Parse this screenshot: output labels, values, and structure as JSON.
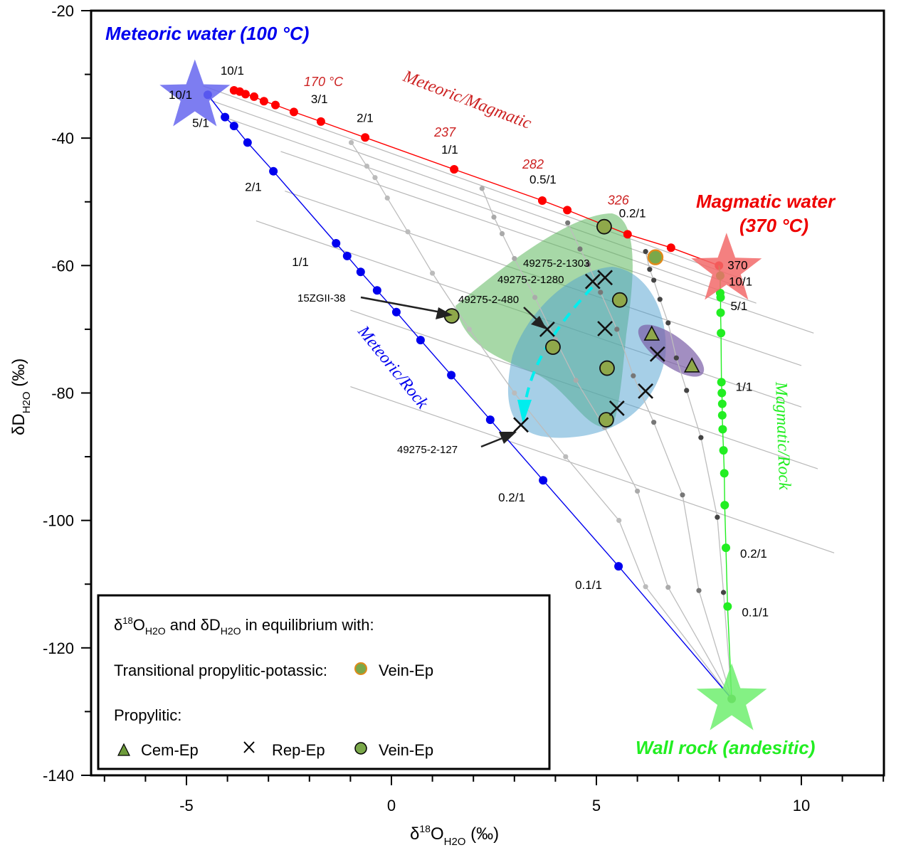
{
  "chart_data": {
    "type": "scatter",
    "title": "",
    "xlabel": "δ18O_H2O (‰)",
    "ylabel": "δD_H2O (‰)",
    "xlim": [
      -7.2,
      12.5
    ],
    "ylim": [
      -140,
      -20
    ],
    "xticks": [
      -5,
      0,
      5,
      10
    ],
    "yticks": [
      -20,
      -40,
      -60,
      -80,
      -100,
      -120,
      -140
    ],
    "grid": false,
    "endmembers": [
      {
        "name": "Meteoric water (100 °C)",
        "x": -4.5,
        "y": -33,
        "color": "#6666ee"
      },
      {
        "name": "Magmatic water (370 °C)",
        "x": 8.0,
        "y": -60,
        "color": "#f26a6a"
      },
      {
        "name": "Wall rock (andesitic)",
        "x": 8.3,
        "y": -128,
        "color": "#6fef6f"
      }
    ],
    "series": [
      {
        "name": "Meteoric/Magmatic",
        "color": "#ff0000",
        "points": [
          [
            -3.84,
            -32.5
          ],
          [
            -3.7,
            -32.7
          ],
          [
            -3.56,
            -33.1
          ],
          [
            -3.35,
            -33.5
          ],
          [
            -3.11,
            -34.2
          ],
          [
            -2.83,
            -34.8
          ],
          [
            -2.38,
            -35.9
          ],
          [
            -1.72,
            -37.4
          ],
          [
            -0.64,
            -39.9
          ],
          [
            1.53,
            -44.9
          ],
          [
            3.68,
            -49.8
          ],
          [
            4.29,
            -51.3
          ],
          [
            5.76,
            -55.1
          ],
          [
            6.82,
            -57.2
          ],
          [
            7.99,
            -60.0
          ]
        ],
        "ratio_labels": [
          {
            "text": "10/1",
            "x": -3.84,
            "y": -32.5
          },
          {
            "text": "3/1",
            "x": -1.72,
            "y": -37.4
          },
          {
            "text": "2/1",
            "x": -0.64,
            "y": -39.9
          },
          {
            "text": "1/1",
            "x": 1.53,
            "y": -44.9
          },
          {
            "text": "0.5/1",
            "x": 3.68,
            "y": -49.8
          },
          {
            "text": "0.2/1",
            "x": 5.76,
            "y": -55.1
          },
          {
            "text": "370",
            "x": 7.99,
            "y": -60.0
          }
        ],
        "temperature_labels": [
          {
            "text": "170 °C",
            "x": -1.72,
            "y": -37.4
          },
          {
            "text": "237",
            "x": 1.53,
            "y": -44.9
          },
          {
            "text": "282",
            "x": 3.68,
            "y": -49.8
          },
          {
            "text": "326",
            "x": 5.76,
            "y": -55.1
          }
        ]
      },
      {
        "name": "Meteoric/Rock",
        "color": "#0000ee",
        "points": [
          [
            -4.48,
            -33.2
          ],
          [
            -4.06,
            -36.7
          ],
          [
            -3.84,
            -38.1
          ],
          [
            -3.51,
            -40.7
          ],
          [
            -2.88,
            -45.2
          ],
          [
            -1.35,
            -56.5
          ],
          [
            -1.08,
            -58.5
          ],
          [
            -0.75,
            -61.0
          ],
          [
            -0.35,
            -63.9
          ],
          [
            0.12,
            -67.3
          ],
          [
            0.71,
            -71.7
          ],
          [
            1.46,
            -77.2
          ],
          [
            2.41,
            -84.2
          ],
          [
            3.7,
            -93.7
          ],
          [
            5.54,
            -107.2
          ],
          [
            8.3,
            -128
          ]
        ],
        "ratio_labels": [
          {
            "text": "10/1",
            "x": -4.48,
            "y": -33.2
          },
          {
            "text": "5/1",
            "x": -4.06,
            "y": -36.7
          },
          {
            "text": "2/1",
            "x": -2.88,
            "y": -45.2
          },
          {
            "text": "1/1",
            "x": -1.35,
            "y": -56.5
          },
          {
            "text": "0.2/1",
            "x": 3.7,
            "y": -93.7
          },
          {
            "text": "0.1/1",
            "x": 5.54,
            "y": -107.2
          }
        ]
      },
      {
        "name": "Magmatic/Rock",
        "color": "#22ee22",
        "points": [
          [
            8.02,
            -61.6
          ],
          [
            8.02,
            -64.3
          ],
          [
            8.03,
            -65.0
          ],
          [
            8.03,
            -67.4
          ],
          [
            8.04,
            -70.6
          ],
          [
            8.05,
            -78.3
          ],
          [
            8.06,
            -80.0
          ],
          [
            8.07,
            -81.7
          ],
          [
            8.07,
            -83.5
          ],
          [
            8.08,
            -85.7
          ],
          [
            8.1,
            -89.0
          ],
          [
            8.12,
            -92.6
          ],
          [
            8.13,
            -97.6
          ],
          [
            8.16,
            -104.3
          ],
          [
            8.2,
            -113.5
          ],
          [
            8.3,
            -128
          ]
        ],
        "ratio_labels": [
          {
            "text": "10/1",
            "x": 8.02,
            "y": -61.6
          },
          {
            "text": "5/1",
            "x": 8.03,
            "y": -65.0
          },
          {
            "text": "1/1",
            "x": 8.05,
            "y": -78.3
          },
          {
            "text": "0.2/1",
            "x": 8.16,
            "y": -104.3
          },
          {
            "text": "0.1/1",
            "x": 8.2,
            "y": -113.5
          }
        ]
      }
    ],
    "mixing_curves": [
      {
        "name": "mix-1",
        "color": "#bbbbbb",
        "points": [
          [
            -0.98,
            -40.7
          ],
          [
            -0.6,
            -44.4
          ],
          [
            -0.4,
            -46.2
          ],
          [
            -0.1,
            -49.4
          ],
          [
            0.4,
            -54.7
          ],
          [
            1.0,
            -61.2
          ],
          [
            1.9,
            -70.0
          ],
          [
            3.0,
            -80.0
          ],
          [
            4.25,
            -90.0
          ],
          [
            5.55,
            -100.0
          ],
          [
            6.2,
            -110.4
          ],
          [
            8.3,
            -128
          ]
        ]
      },
      {
        "name": "mix-2",
        "color": "#aaaaaa",
        "points": [
          [
            2.21,
            -47.9
          ],
          [
            2.5,
            -52.4
          ],
          [
            2.7,
            -55.0
          ],
          [
            3.0,
            -58.9
          ],
          [
            3.5,
            -65.0
          ],
          [
            4.0,
            -71.6
          ],
          [
            4.5,
            -78.0
          ],
          [
            5.2,
            -85.4
          ],
          [
            6.0,
            -95.4
          ],
          [
            6.75,
            -110.5
          ],
          [
            8.3,
            -128
          ]
        ]
      },
      {
        "name": "mix-3",
        "color": "#777777",
        "points": [
          [
            4.3,
            -53.3
          ],
          [
            4.6,
            -57.4
          ],
          [
            4.8,
            -59.8
          ],
          [
            5.1,
            -64.2
          ],
          [
            5.5,
            -70.0
          ],
          [
            5.9,
            -77.3
          ],
          [
            6.4,
            -84.6
          ],
          [
            7.1,
            -96.0
          ],
          [
            7.5,
            -111.0
          ],
          [
            8.3,
            -128
          ]
        ]
      },
      {
        "name": "mix-4",
        "color": "#444444",
        "points": [
          [
            6.2,
            -57.8
          ],
          [
            6.3,
            -60.6
          ],
          [
            6.4,
            -62.3
          ],
          [
            6.55,
            -65.3
          ],
          [
            6.75,
            -69.0
          ],
          [
            6.95,
            -74.5
          ],
          [
            7.2,
            -79.6
          ],
          [
            7.55,
            -87.0
          ],
          [
            7.95,
            -99.5
          ],
          [
            8.1,
            -111.3
          ],
          [
            8.3,
            -128
          ]
        ]
      }
    ],
    "isotherm_lines": [
      [
        [
          -4.6,
          -31.8
        ],
        [
          8.6,
          -62.2
        ]
      ],
      [
        [
          -4.4,
          -34.1
        ],
        [
          8.6,
          -63.6
        ]
      ],
      [
        [
          -4.0,
          -36.9
        ],
        [
          8.9,
          -65.9
        ]
      ],
      [
        [
          -2.7,
          -42.1
        ],
        [
          10.3,
          -70.6
        ]
      ],
      [
        [
          -2.6,
          -48.3
        ],
        [
          10.0,
          -75.7
        ]
      ],
      [
        [
          -3.3,
          -53.0
        ],
        [
          10.0,
          -82.2
        ]
      ],
      [
        [
          -1.0,
          -67.0
        ],
        [
          10.4,
          -91.9
        ]
      ],
      [
        [
          -1.0,
          -79.0
        ],
        [
          10.8,
          -105.1
        ]
      ]
    ],
    "regions": [
      {
        "name": "Vein-Ep field",
        "color": "#5fb85f",
        "opacity": 0.55
      },
      {
        "name": "Rep-Ep field",
        "color": "#5aa7d1",
        "opacity": 0.55
      },
      {
        "name": "Cem-Ep field",
        "color": "#7b5ea7",
        "opacity": 0.65
      }
    ],
    "samples": {
      "transitional_vein_ep": [
        [
          6.44,
          -58.7
        ]
      ],
      "propylitic_vein_ep": [
        [
          1.47,
          -67.9
        ],
        [
          3.94,
          -72.8
        ],
        [
          5.19,
          -53.9
        ],
        [
          5.57,
          -65.4
        ],
        [
          5.26,
          -76.1
        ],
        [
          5.24,
          -84.2
        ]
      ],
      "propylitic_rep_ep": [
        [
          3.16,
          -85.0
        ],
        [
          3.8,
          -70.0
        ],
        [
          4.91,
          -62.5
        ],
        [
          5.21,
          -61.9
        ],
        [
          5.21,
          -69.9
        ],
        [
          5.5,
          -82.4
        ],
        [
          6.49,
          -73.9
        ],
        [
          6.2,
          -79.7
        ]
      ],
      "propylitic_cem_ep": [
        [
          6.35,
          -70.8
        ],
        [
          7.33,
          -75.8
        ]
      ]
    },
    "annotations": [
      {
        "text": "15ZGII-38",
        "target": [
          1.47,
          -67.9
        ]
      },
      {
        "text": "49275-2-480",
        "target": [
          3.8,
          -70.0
        ]
      },
      {
        "text": "49275-2-1303",
        "target": [
          5.21,
          -61.9
        ]
      },
      {
        "text": "49275-2-1280",
        "target": [
          4.91,
          -62.5
        ]
      },
      {
        "text": "49275-2-127",
        "target": [
          3.16,
          -85.0
        ]
      }
    ],
    "legend": {
      "position": "bottom-left",
      "heading": "δ18O_H2O and δD_H2O in equilibrium with:",
      "transitional_label": "Transitional propylitic-potassic:",
      "transitional_item": "Vein-Ep",
      "propylitic_label": "Propylitic:",
      "items": [
        "Cem-Ep",
        "Rep-Ep",
        "Vein-Ep"
      ]
    }
  },
  "text": {
    "meteoric_title": "Meteoric water (100 °C)",
    "magmatic_title_1": "Magmatic water",
    "magmatic_title_2": "(370 °C)",
    "wallrock_title": "Wall rock (andesitic)",
    "curve_met_mag": "Meteoric/Magmatic",
    "curve_met_rock": "Meteoric/Rock",
    "curve_mag_rock": "Magmatic/Rock",
    "x_ticks": [
      "-5",
      "0",
      "5",
      "10"
    ],
    "y_ticks": [
      "-20",
      "-40",
      "-60",
      "-80",
      "-100",
      "-120",
      "-140"
    ],
    "xlabel_main": "δ",
    "xlabel_sup": "18",
    "xlabel_o": "O",
    "xlabel_sub": "H2O",
    "xlabel_unit": " (‰)",
    "ylabel_main": "δD",
    "ylabel_sub": "H2O",
    "ylabel_unit": " (‰)",
    "legend_heading_d": "δ",
    "legend_heading_sup": "18",
    "legend_heading_o": "O",
    "legend_heading_sub1": "H2O",
    "legend_heading_mid": " and δD",
    "legend_heading_sub2": "H2O",
    "legend_heading_end": " in equilibrium with:",
    "legend_transitional": "Transitional propylitic-potassic:",
    "legend_transitional_item": "Vein-Ep",
    "legend_propylitic": "Propylitic:",
    "legend_cem": "Cem-Ep",
    "legend_rep": "Rep-Ep",
    "legend_vein": "Vein-Ep"
  }
}
